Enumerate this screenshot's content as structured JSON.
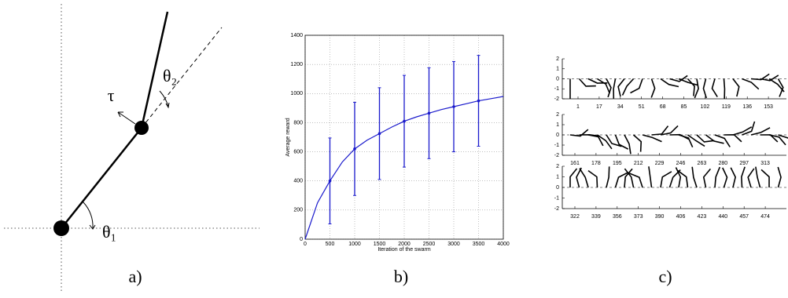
{
  "panel_a": {
    "label": "a)",
    "tau": "τ",
    "theta1": "θ₁",
    "theta2": "θ₂"
  },
  "chart_data": {
    "type": "line",
    "label": "b)",
    "x_label": "Iteration of the swarm",
    "y_label": "Average reward",
    "x": [
      0,
      250,
      500,
      750,
      1000,
      1250,
      1500,
      1750,
      2000,
      2250,
      2500,
      2750,
      3000,
      3250,
      3500,
      3750,
      4000
    ],
    "values": [
      0,
      250,
      400,
      530,
      620,
      680,
      725,
      770,
      810,
      840,
      865,
      890,
      910,
      930,
      950,
      965,
      980
    ],
    "color": "#1a1acc",
    "error_bars": {
      "x": [
        500,
        1000,
        1500,
        2000,
        2500,
        3000,
        3500
      ],
      "values": [
        400,
        620,
        725,
        810,
        865,
        910,
        950
      ],
      "errors": [
        295,
        320,
        315,
        315,
        312,
        310,
        312
      ]
    },
    "xlim": [
      0,
      4000
    ],
    "xticks": [
      0,
      500,
      1000,
      1500,
      2000,
      2500,
      3000,
      3500,
      4000
    ],
    "ylim": [
      0,
      1400
    ],
    "yticks": [
      0,
      200,
      400,
      600,
      800,
      1000,
      1200,
      1400
    ],
    "grid": true
  },
  "panel_c": {
    "label": "c)",
    "rows": [
      {
        "yticks": [
          2,
          1,
          0,
          -1,
          -2
        ],
        "xticks": [
          1,
          17,
          34,
          51,
          68,
          85,
          102,
          119,
          136,
          153
        ]
      },
      {
        "yticks": [
          2,
          1,
          0,
          -1,
          -2
        ],
        "xticks": [
          161,
          178,
          195,
          212,
          229,
          246,
          263,
          280,
          297,
          313
        ]
      },
      {
        "yticks": [
          2,
          1,
          0,
          -1,
          -2
        ],
        "xticks": [
          322,
          339,
          356,
          373,
          390,
          406,
          423,
          440,
          457,
          474
        ]
      }
    ]
  }
}
